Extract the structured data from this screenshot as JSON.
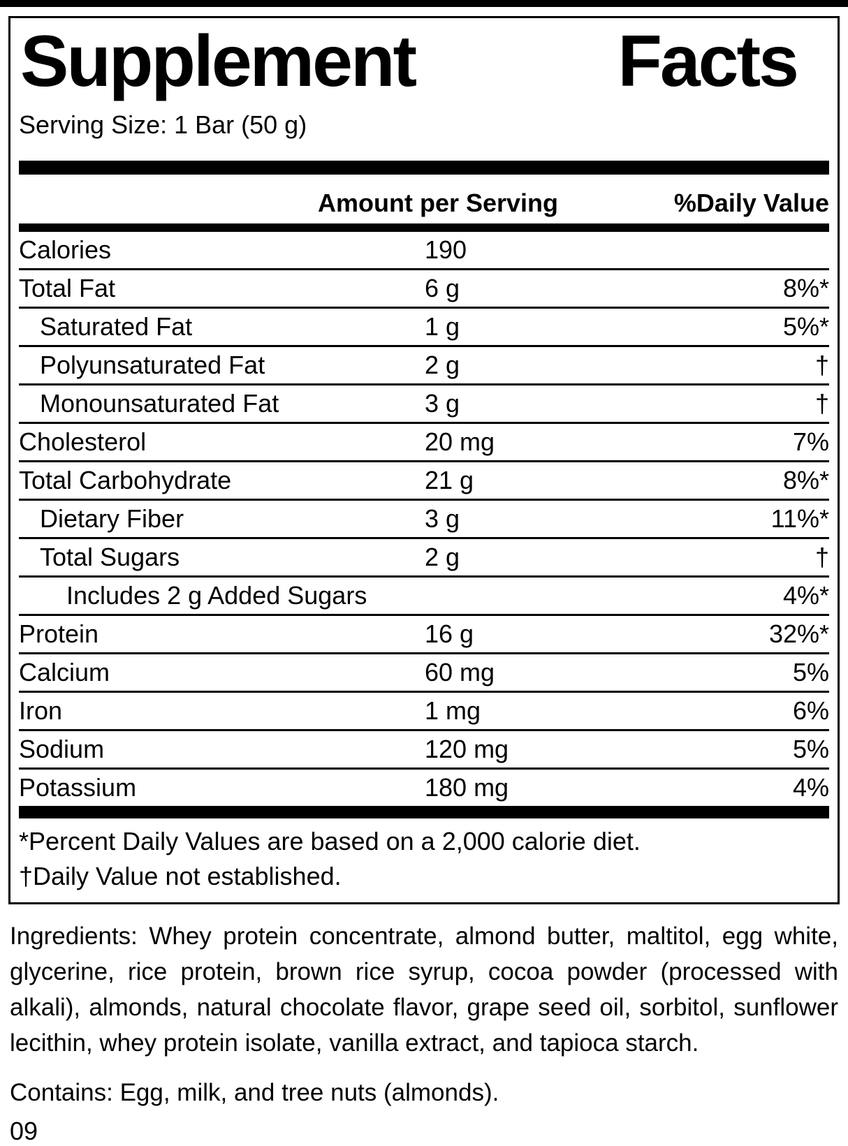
{
  "colors": {
    "ink": "#000000",
    "paper": "#ffffff"
  },
  "panel": {
    "title_words": [
      "Supplement",
      "Facts"
    ],
    "serving_size": "Serving Size: 1 Bar (50 g)",
    "columns": {
      "amount": "Amount per Serving",
      "daily_value": "%Daily Value"
    },
    "rows": [
      {
        "name": "Calories",
        "amount": "190",
        "dv": "",
        "indent": 0
      },
      {
        "name": "Total Fat",
        "amount": "6 g",
        "dv": "8%*",
        "indent": 0
      },
      {
        "name": "Saturated Fat",
        "amount": "1 g",
        "dv": "5%*",
        "indent": 1
      },
      {
        "name": "Polyunsaturated Fat",
        "amount": "2 g",
        "dv": "†",
        "indent": 1
      },
      {
        "name": "Monounsaturated Fat",
        "amount": "3 g",
        "dv": "†",
        "indent": 1
      },
      {
        "name": "Cholesterol",
        "amount": "20 mg",
        "dv": "7%",
        "indent": 0
      },
      {
        "name": "Total Carbohydrate",
        "amount": "21 g",
        "dv": "8%*",
        "indent": 0
      },
      {
        "name": "Dietary Fiber",
        "amount": "3 g",
        "dv": "11%*",
        "indent": 1
      },
      {
        "name": "Total Sugars",
        "amount": "2 g",
        "dv": "†",
        "indent": 1
      },
      {
        "name": "Includes 2 g Added Sugars",
        "amount": "",
        "dv": "4%*",
        "indent": 2
      },
      {
        "name": "Protein",
        "amount": "16 g",
        "dv": "32%*",
        "indent": 0
      },
      {
        "name": "Calcium",
        "amount": "60 mg",
        "dv": "5%",
        "indent": 0
      },
      {
        "name": "Iron",
        "amount": "1 mg",
        "dv": "6%",
        "indent": 0
      },
      {
        "name": "Sodium",
        "amount": "120 mg",
        "dv": "5%",
        "indent": 0
      },
      {
        "name": "Potassium",
        "amount": "180 mg",
        "dv": "4%",
        "indent": 0
      }
    ],
    "footnotes": [
      "*Percent Daily Values are based on a 2,000 calorie diet.",
      "†Daily Value not established."
    ]
  },
  "ingredients_text": "Ingredients: Whey protein concentrate, almond butter, maltitol, egg white, glycerine, rice protein, brown rice syrup, cocoa powder (processed with alkali), almonds, natural chocolate flavor, grape seed oil, sorbitol, sunflower lecithin, whey protein isolate, vanilla extract, and tapioca starch.",
  "contains_text": "Contains: Egg, milk, and tree nuts (almonds).",
  "page_code": "09"
}
